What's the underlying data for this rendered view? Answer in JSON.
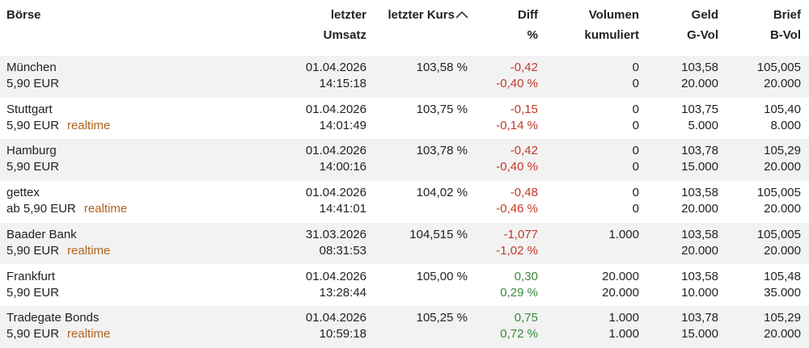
{
  "table": {
    "columns": [
      [
        "Börse"
      ],
      [
        "letzter",
        "Umsatz"
      ],
      [
        "letzter Kurs"
      ],
      [
        "Diff",
        "%"
      ],
      [
        "Volumen",
        "kumuliert"
      ],
      [
        "Geld",
        "G-Vol"
      ],
      [
        "Brief",
        "B-Vol"
      ]
    ],
    "rows": [
      {
        "name": "München",
        "fee": "5,90 EUR",
        "date": "01.04.2026",
        "time": "14:15:18",
        "price": "103,58 %",
        "diff": "-0,42",
        "diff_pct": "-0,40 %",
        "volume": [
          "0",
          "0"
        ],
        "bid": "103,58",
        "bid_vol": "20.000",
        "ask": "105,005",
        "ask_vol": "20.000"
      },
      {
        "name": "Stuttgart",
        "fee": "5,90 EUR",
        "tag": "realtime",
        "date": "01.04.2026",
        "time": "14:01:49",
        "price": "103,75 %",
        "diff": "-0,15",
        "diff_pct": "-0,14 %",
        "volume": [
          "0",
          "0"
        ],
        "bid": "103,75",
        "bid_vol": "5.000",
        "ask": "105,40",
        "ask_vol": "8.000"
      },
      {
        "name": "Hamburg",
        "fee": "5,90 EUR",
        "date": "01.04.2026",
        "time": "14:00:16",
        "price": "103,78 %",
        "diff": "-0,42",
        "diff_pct": "-0,40 %",
        "volume": [
          "0",
          "0"
        ],
        "bid": "103,78",
        "bid_vol": "15.000",
        "ask": "105,29",
        "ask_vol": "20.000"
      },
      {
        "name": "gettex",
        "fee": "ab 5,90 EUR",
        "tag": "realtime",
        "date": "01.04.2026",
        "time": "14:41:01",
        "price": "104,02 %",
        "diff": "-0,48",
        "diff_pct": "-0,46 %",
        "volume": [
          "0",
          "0"
        ],
        "bid": "103,58",
        "bid_vol": "20.000",
        "ask": "105,005",
        "ask_vol": "20.000"
      },
      {
        "name": "Baader Bank",
        "fee": "5,90 EUR",
        "tag": "realtime",
        "date": "31.03.2026",
        "time": "08:31:53",
        "price": "104,515 %",
        "diff": "-1,077",
        "diff_pct": "-1,02 %",
        "volume": [
          "1.000"
        ],
        "bid": "103,58",
        "bid_vol": "20.000",
        "ask": "105,005",
        "ask_vol": "20.000"
      },
      {
        "name": "Frankfurt",
        "fee": "5,90 EUR",
        "date": "01.04.2026",
        "time": "13:28:44",
        "price": "105,00 %",
        "diff": "0,30",
        "diff_pct": "0,29 %",
        "volume": [
          "20.000",
          "20.000"
        ],
        "bid": "103,58",
        "bid_vol": "10.000",
        "ask": "105,48",
        "ask_vol": "35.000"
      },
      {
        "name": "Tradegate Bonds",
        "fee": "5,90 EUR",
        "tag": "realtime",
        "date": "01.04.2026",
        "time": "10:59:18",
        "price": "105,25 %",
        "diff": "0,75",
        "diff_pct": "0,72 %",
        "volume": [
          "1.000",
          "1.000"
        ],
        "bid": "103,78",
        "bid_vol": "15.000",
        "ask": "105,29",
        "ask_vol": "20.000"
      }
    ]
  }
}
